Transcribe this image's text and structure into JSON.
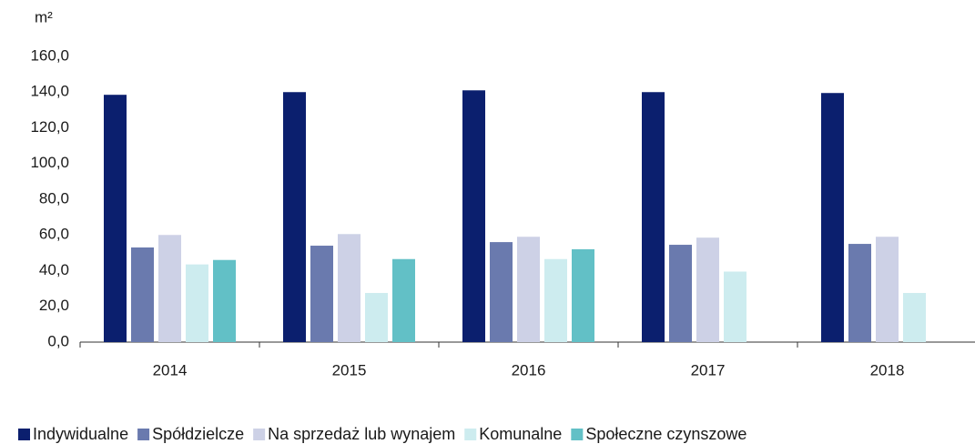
{
  "chart_data": {
    "type": "bar",
    "y_axis_label": "m²",
    "categories": [
      "2014",
      "2015",
      "2016",
      "2017",
      "2018"
    ],
    "series": [
      {
        "name": "Indywidualne",
        "color": "#0b1f6e",
        "values": [
          138.5,
          140.0,
          141.0,
          140.0,
          139.5
        ]
      },
      {
        "name": "Spółdzielcze",
        "color": "#6a7aae",
        "values": [
          53.0,
          54.0,
          56.0,
          54.5,
          55.0
        ]
      },
      {
        "name": "Na sprzedaż lub wynajem",
        "color": "#cdd1e6",
        "values": [
          60.0,
          60.5,
          59.0,
          58.5,
          59.0
        ]
      },
      {
        "name": "Komunalne",
        "color": "#cdecef",
        "values": [
          43.5,
          27.5,
          46.5,
          39.5,
          27.5
        ]
      },
      {
        "name": "Społeczne czynszowe",
        "color": "#62c0c6",
        "values": [
          46.0,
          46.5,
          52.0,
          null,
          null
        ]
      }
    ],
    "ylim": [
      0,
      160
    ],
    "yticks": [
      {
        "value": 0,
        "label": "0,0"
      },
      {
        "value": 20,
        "label": "20,0"
      },
      {
        "value": 40,
        "label": "40,0"
      },
      {
        "value": 60,
        "label": "60,0"
      },
      {
        "value": 80,
        "label": "80,0"
      },
      {
        "value": 100,
        "label": "100,0"
      },
      {
        "value": 120,
        "label": "120,0"
      },
      {
        "value": 140,
        "label": "140,0"
      },
      {
        "value": 160,
        "label": "160,0"
      }
    ],
    "grid": false,
    "legend": "bottom"
  }
}
